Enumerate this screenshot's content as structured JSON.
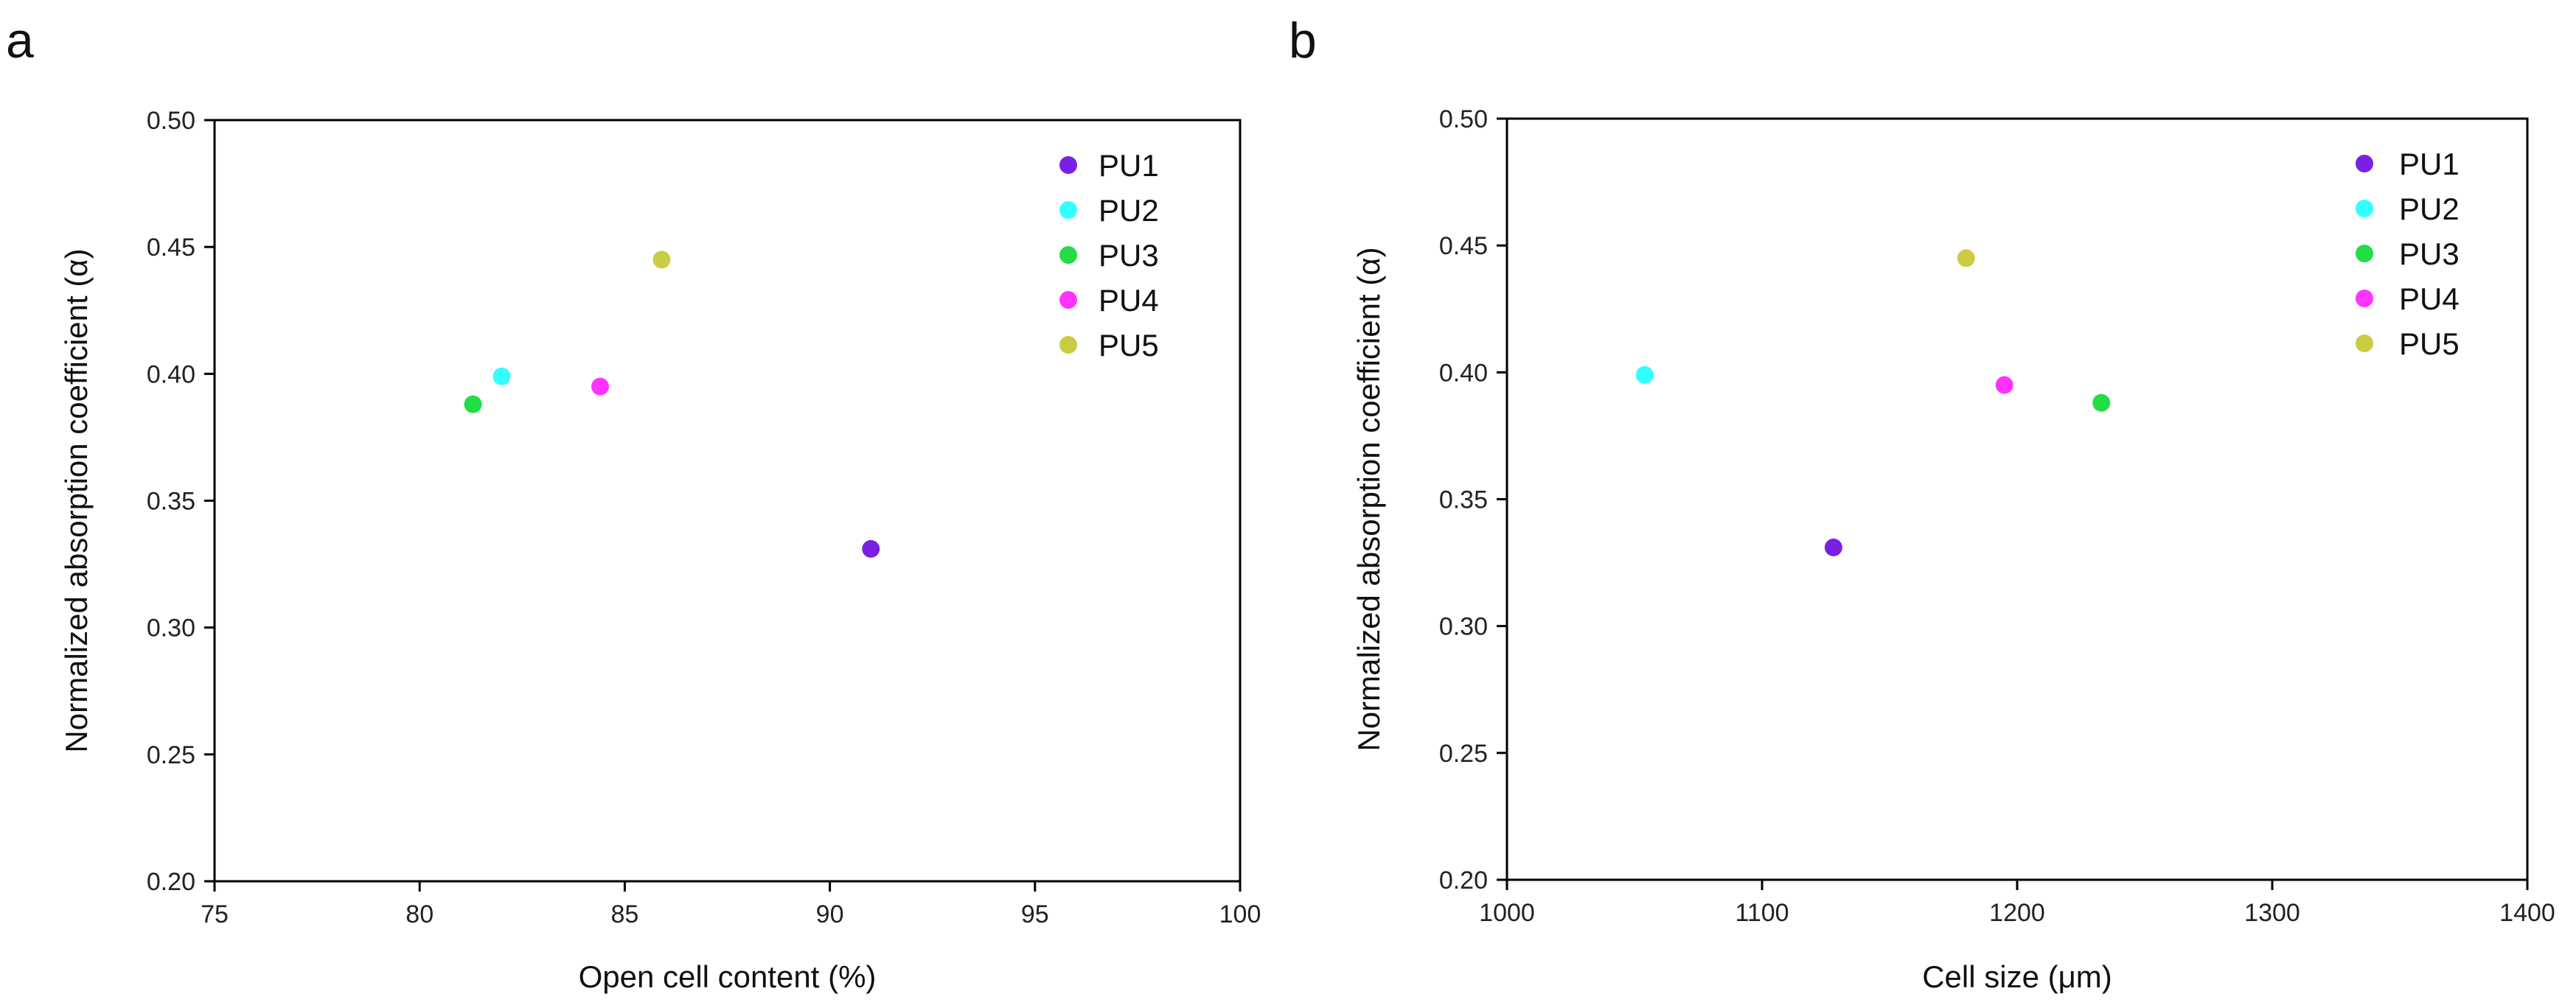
{
  "chart_data": [
    {
      "panel_label": "a",
      "type": "scatter",
      "title": "",
      "xlabel": "Open cell content (%)",
      "ylabel": "Normalized absorption coefficient (α)",
      "xlim": [
        75,
        100
      ],
      "ylim": [
        0.2,
        0.5
      ],
      "xticks": [
        75,
        80,
        85,
        90,
        95,
        100
      ],
      "xtick_labels": [
        "75",
        "80",
        "85",
        "90",
        "95",
        "100"
      ],
      "yticks": [
        0.2,
        0.25,
        0.3,
        0.35,
        0.4,
        0.45,
        0.5
      ],
      "ytick_labels": [
        "0.20",
        "0.25",
        "0.30",
        "0.35",
        "0.40",
        "0.45",
        "0.50"
      ],
      "legend_position": "top-right",
      "grid": false,
      "series": [
        {
          "name": "PU1",
          "color": "#7a1fe6",
          "x": 91.0,
          "y": 0.331
        },
        {
          "name": "PU2",
          "color": "#33ffff",
          "x": 82.0,
          "y": 0.399
        },
        {
          "name": "PU3",
          "color": "#22dd44",
          "x": 81.3,
          "y": 0.388
        },
        {
          "name": "PU4",
          "color": "#ff33ff",
          "x": 84.4,
          "y": 0.395
        },
        {
          "name": "PU5",
          "color": "#cccc44",
          "x": 85.9,
          "y": 0.445
        }
      ]
    },
    {
      "panel_label": "b",
      "type": "scatter",
      "title": "",
      "xlabel": "Cell size (μm)",
      "ylabel": "Normalized absorption coefficient (α)",
      "xlim": [
        1000,
        1400
      ],
      "ylim": [
        0.2,
        0.5
      ],
      "xticks": [
        1000,
        1100,
        1200,
        1300,
        1400
      ],
      "xtick_labels": [
        "1000",
        "1100",
        "1200",
        "1300",
        "1400"
      ],
      "yticks": [
        0.2,
        0.25,
        0.3,
        0.35,
        0.4,
        0.45,
        0.5
      ],
      "ytick_labels": [
        "0.20",
        "0.25",
        "0.30",
        "0.35",
        "0.40",
        "0.45",
        "0.50"
      ],
      "legend_position": "top-right",
      "grid": false,
      "series": [
        {
          "name": "PU1",
          "color": "#7a1fe6",
          "x": 1128,
          "y": 0.331
        },
        {
          "name": "PU2",
          "color": "#33ffff",
          "x": 1054,
          "y": 0.399
        },
        {
          "name": "PU3",
          "color": "#22dd44",
          "x": 1233,
          "y": 0.388
        },
        {
          "name": "PU4",
          "color": "#ff33ff",
          "x": 1195,
          "y": 0.395
        },
        {
          "name": "PU5",
          "color": "#cccc44",
          "x": 1180,
          "y": 0.445
        }
      ]
    }
  ]
}
